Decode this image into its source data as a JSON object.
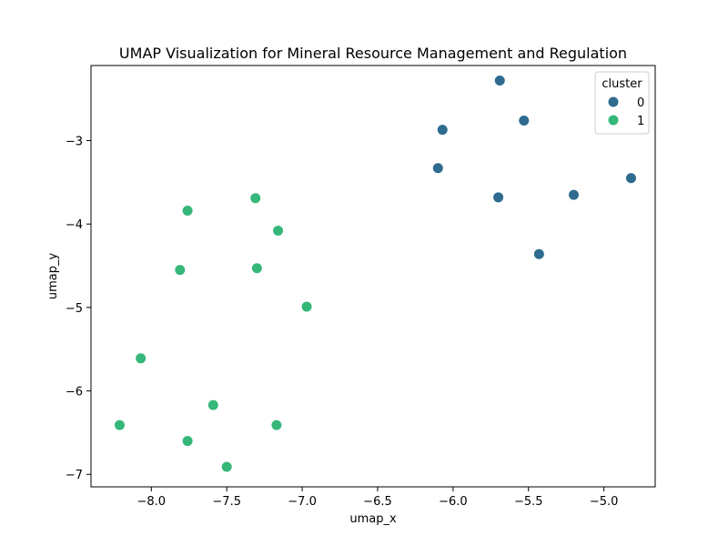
{
  "chart_data": {
    "type": "scatter",
    "title": "UMAP Visualization for Mineral Resource Management and Regulation",
    "xlabel": "umap_x",
    "ylabel": "umap_y",
    "xlim": [
      -8.4,
      -4.66
    ],
    "ylim": [
      -7.15,
      -2.1
    ],
    "xticks": [
      -8.0,
      -7.5,
      -7.0,
      -6.5,
      -6.0,
      -5.5,
      -5.0
    ],
    "xtick_labels": [
      "−8.0",
      "−7.5",
      "−7.0",
      "−6.5",
      "−6.0",
      "−5.5",
      "−5.0"
    ],
    "yticks": [
      -7,
      -6,
      -5,
      -4,
      -3
    ],
    "ytick_labels": [
      "−7",
      "−6",
      "−5",
      "−4",
      "−3"
    ],
    "grid": false,
    "legend": {
      "title": "cluster",
      "placement": "top-right"
    },
    "series": [
      {
        "name": "0",
        "color": "#2e6b8e",
        "points": [
          {
            "x": -5.69,
            "y": -2.28
          },
          {
            "x": -5.53,
            "y": -2.76
          },
          {
            "x": -6.07,
            "y": -2.87
          },
          {
            "x": -6.1,
            "y": -3.33
          },
          {
            "x": -4.82,
            "y": -3.45
          },
          {
            "x": -5.2,
            "y": -3.65
          },
          {
            "x": -5.7,
            "y": -3.68
          },
          {
            "x": -5.43,
            "y": -4.36
          }
        ]
      },
      {
        "name": "1",
        "color": "#35b779",
        "points": [
          {
            "x": -7.31,
            "y": -3.69
          },
          {
            "x": -7.76,
            "y": -3.84
          },
          {
            "x": -7.16,
            "y": -4.08
          },
          {
            "x": -7.3,
            "y": -4.53
          },
          {
            "x": -7.81,
            "y": -4.55
          },
          {
            "x": -6.97,
            "y": -4.99
          },
          {
            "x": -8.07,
            "y": -5.61
          },
          {
            "x": -7.59,
            "y": -6.17
          },
          {
            "x": -8.21,
            "y": -6.41
          },
          {
            "x": -7.17,
            "y": -6.41
          },
          {
            "x": -7.76,
            "y": -6.6
          },
          {
            "x": -7.5,
            "y": -6.91
          }
        ]
      }
    ]
  }
}
